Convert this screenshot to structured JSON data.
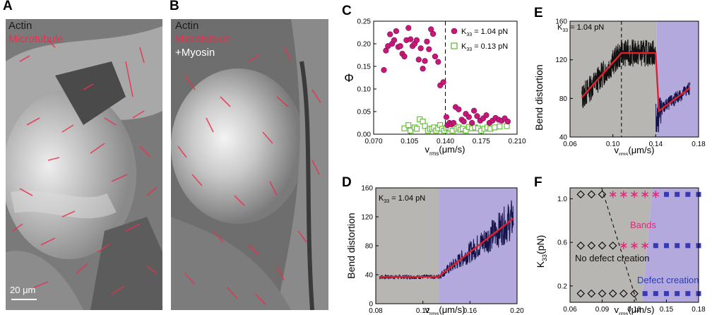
{
  "panels": {
    "A": {
      "label": "A",
      "legend": [
        "Actin",
        "Microtubule"
      ],
      "legend_colors": [
        "#1a1a1a",
        "#e8314f"
      ],
      "scale_bar": "20 μm"
    },
    "B": {
      "label": "B",
      "legend": [
        "Actin",
        "Microtubule",
        "+Myosin"
      ],
      "legend_colors": [
        "#1a1a1a",
        "#e8314f",
        "#ffffff"
      ]
    }
  },
  "colors": {
    "gray_region": "#b8b6b3",
    "purple_region": "#b3a9dc",
    "magenta": "#c8177a",
    "green": "#5cb82e",
    "red_fit": "#e0202c",
    "navy": "#14144a",
    "square_blue": "#3a3ab0",
    "bands_text": "#e0287a",
    "defect_text": "#2a3ab8"
  },
  "chart_data": [
    {
      "panel": "C",
      "type": "scatter",
      "xlabel": "v_rms (μm/s)",
      "ylabel": "Φ",
      "xlim": [
        0.07,
        0.21
      ],
      "ylim": [
        0,
        0.25
      ],
      "xticks": [
        "0.070",
        "0.105",
        "0.140",
        "0.175",
        "0.210"
      ],
      "yticks": [
        "0.00",
        "0.05",
        "0.10",
        "0.15",
        "0.20",
        "0.25"
      ],
      "vline": 0.14,
      "series": [
        {
          "name": "K33 = 1.04 pN",
          "marker": "filled-circle",
          "points": [
            [
              0.08,
              0.142
            ],
            [
              0.082,
              0.185
            ],
            [
              0.084,
              0.195
            ],
            [
              0.086,
              0.221
            ],
            [
              0.088,
              0.2
            ],
            [
              0.09,
              0.208
            ],
            [
              0.092,
              0.228
            ],
            [
              0.094,
              0.193
            ],
            [
              0.096,
              0.195
            ],
            [
              0.098,
              0.178
            ],
            [
              0.1,
              0.172
            ],
            [
              0.102,
              0.208
            ],
            [
              0.104,
              0.235
            ],
            [
              0.106,
              0.21
            ],
            [
              0.108,
              0.195
            ],
            [
              0.11,
              0.2
            ],
            [
              0.112,
              0.208
            ],
            [
              0.114,
              0.165
            ],
            [
              0.116,
              0.19
            ],
            [
              0.118,
              0.145
            ],
            [
              0.12,
              0.162
            ],
            [
              0.122,
              0.205
            ],
            [
              0.124,
              0.188
            ],
            [
              0.126,
              0.232
            ],
            [
              0.128,
              0.222
            ],
            [
              0.13,
              0.172
            ],
            [
              0.133,
              0.16
            ],
            [
              0.135,
              0.108
            ],
            [
              0.138,
              0.115
            ],
            [
              0.141,
              0.038
            ],
            [
              0.142,
              0.02
            ],
            [
              0.144,
              0.025
            ],
            [
              0.146,
              0.022
            ],
            [
              0.148,
              0.025
            ],
            [
              0.15,
              0.06
            ],
            [
              0.153,
              0.055
            ],
            [
              0.156,
              0.032
            ],
            [
              0.158,
              0.028
            ],
            [
              0.16,
              0.045
            ],
            [
              0.163,
              0.038
            ],
            [
              0.166,
              0.025
            ],
            [
              0.168,
              0.052
            ],
            [
              0.171,
              0.04
            ],
            [
              0.174,
              0.03
            ],
            [
              0.177,
              0.035
            ],
            [
              0.18,
              0.042
            ],
            [
              0.183,
              0.025
            ],
            [
              0.186,
              0.03
            ],
            [
              0.189,
              0.036
            ],
            [
              0.192,
              0.032
            ],
            [
              0.195,
              0.03
            ],
            [
              0.198,
              0.035
            ],
            [
              0.201,
              0.028
            ]
          ]
        },
        {
          "name": "K33 = 0.13 pN",
          "marker": "open-square",
          "points": [
            [
              0.1,
              0.013
            ],
            [
              0.104,
              0.02
            ],
            [
              0.106,
              0.008
            ],
            [
              0.11,
              0.015
            ],
            [
              0.112,
              0.012
            ],
            [
              0.115,
              0.033
            ],
            [
              0.118,
              0.028
            ],
            [
              0.12,
              0.018
            ],
            [
              0.123,
              0.008
            ],
            [
              0.125,
              0.012
            ],
            [
              0.127,
              0.012
            ],
            [
              0.129,
              0.015
            ],
            [
              0.131,
              0.008
            ],
            [
              0.133,
              0.013
            ],
            [
              0.135,
              0.02
            ],
            [
              0.137,
              0.012
            ],
            [
              0.139,
              0.008
            ],
            [
              0.141,
              0.013
            ],
            [
              0.143,
              0.015
            ],
            [
              0.145,
              0.012
            ],
            [
              0.147,
              0.008
            ],
            [
              0.149,
              0.018
            ],
            [
              0.151,
              0.012
            ],
            [
              0.153,
              0.015
            ],
            [
              0.155,
              0.01
            ],
            [
              0.157,
              0.012
            ],
            [
              0.16,
              0.008
            ],
            [
              0.163,
              0.016
            ],
            [
              0.166,
              0.013
            ],
            [
              0.169,
              0.015
            ],
            [
              0.172,
              0.013
            ],
            [
              0.175,
              0.008
            ],
            [
              0.178,
              0.012
            ],
            [
              0.181,
              0.015
            ],
            [
              0.184,
              0.012
            ],
            [
              0.188,
              0.015
            ],
            [
              0.193,
              0.017
            ],
            [
              0.2,
              0.018
            ]
          ]
        }
      ]
    },
    {
      "panel": "D",
      "type": "line",
      "annotation": "K33 = 1.04 pN",
      "xlabel": "v_rms (μm/s)",
      "ylabel": "Bend distortion",
      "xlim": [
        0.08,
        0.2
      ],
      "ylim": [
        0,
        160
      ],
      "xticks": [
        "0.08",
        "0.12",
        "0.16",
        "0.20"
      ],
      "yticks": [
        "0",
        "40",
        "80",
        "120",
        "160"
      ],
      "regions": [
        {
          "from": 0.08,
          "to": 0.134,
          "color": "gray"
        },
        {
          "from": 0.134,
          "to": 0.2,
          "color": "purple"
        }
      ],
      "fit": [
        [
          0.083,
          37
        ],
        [
          0.133,
          37
        ],
        [
          0.197,
          118
        ]
      ]
    },
    {
      "panel": "E",
      "type": "line",
      "annotation": "K33 = 1.04 pN",
      "xlabel": "v_rms (μm/s)",
      "ylabel": "Bend distortion",
      "xlim": [
        0.06,
        0.18
      ],
      "ylim": [
        40,
        160
      ],
      "xticks": [
        "0.06",
        "0.10",
        "0.14",
        "0.18"
      ],
      "yticks": [
        "40",
        "80",
        "120",
        "160"
      ],
      "vline": 0.108,
      "regions": [
        {
          "from": 0.06,
          "to": 0.141,
          "color": "gray"
        },
        {
          "from": 0.141,
          "to": 0.18,
          "color": "purple"
        }
      ],
      "fit": [
        [
          0.071,
          81
        ],
        [
          0.108,
          127
        ],
        [
          0.14,
          127
        ],
        [
          0.14,
          126
        ],
        [
          0.143,
          67
        ],
        [
          0.172,
          91
        ]
      ]
    },
    {
      "panel": "F",
      "type": "scatter",
      "xlabel": "v_rms (μm/s)",
      "ylabel": "K33 (pN)",
      "xlim": [
        0.06,
        0.18
      ],
      "ylim": [
        0.05,
        1.1
      ],
      "xticks": [
        "0.06",
        "0.09",
        "0.12",
        "0.15",
        "0.18"
      ],
      "yticks": [
        "0.2",
        "0.6",
        "1.0"
      ],
      "region_labels": [
        "Bands",
        "No defect creation",
        "Defect creation"
      ],
      "series": [
        {
          "marker": "open-diamond",
          "points": [
            [
              0.07,
              1.04
            ],
            [
              0.08,
              1.04
            ],
            [
              0.09,
              1.04
            ],
            [
              0.07,
              0.57
            ],
            [
              0.08,
              0.57
            ],
            [
              0.09,
              0.57
            ],
            [
              0.1,
              0.57
            ],
            [
              0.07,
              0.13
            ],
            [
              0.08,
              0.13
            ],
            [
              0.09,
              0.13
            ],
            [
              0.1,
              0.13
            ],
            [
              0.11,
              0.13
            ],
            [
              0.12,
              0.13
            ]
          ]
        },
        {
          "marker": "asterisk",
          "points": [
            [
              0.1,
              1.04
            ],
            [
              0.11,
              1.04
            ],
            [
              0.12,
              1.04
            ],
            [
              0.13,
              1.04
            ],
            [
              0.14,
              1.04
            ],
            [
              0.11,
              0.57
            ],
            [
              0.12,
              0.57
            ],
            [
              0.13,
              0.57
            ]
          ]
        },
        {
          "marker": "filled-square",
          "points": [
            [
              0.15,
              1.04
            ],
            [
              0.16,
              1.04
            ],
            [
              0.17,
              1.04
            ],
            [
              0.18,
              1.04
            ],
            [
              0.14,
              0.57
            ],
            [
              0.15,
              0.57
            ],
            [
              0.16,
              0.57
            ],
            [
              0.17,
              0.57
            ],
            [
              0.18,
              0.57
            ],
            [
              0.13,
              0.13
            ],
            [
              0.14,
              0.13
            ],
            [
              0.15,
              0.13
            ],
            [
              0.16,
              0.13
            ],
            [
              0.17,
              0.13
            ],
            [
              0.18,
              0.13
            ]
          ]
        }
      ]
    }
  ],
  "texts": {
    "C_label": "C",
    "D_label": "D",
    "E_label": "E",
    "F_label": "F",
    "phi": "Φ",
    "bend": "Bend distortion",
    "k33_axis": "K",
    "k33_axis_sub": "33",
    "k33_axis_unit": "(pN)",
    "v": "v",
    "rms": "rms",
    "vunit": "(μm/s)",
    "k_ann": "K",
    "k_ann_sub": "33",
    "k_ann_rest": " = 1.04 pN",
    "leg1_rest": " = 1.04 pN",
    "leg2_rest": " = 0.13 pN",
    "bands": "Bands",
    "nodefect": "No defect creation",
    "defect": "Defect creation"
  }
}
